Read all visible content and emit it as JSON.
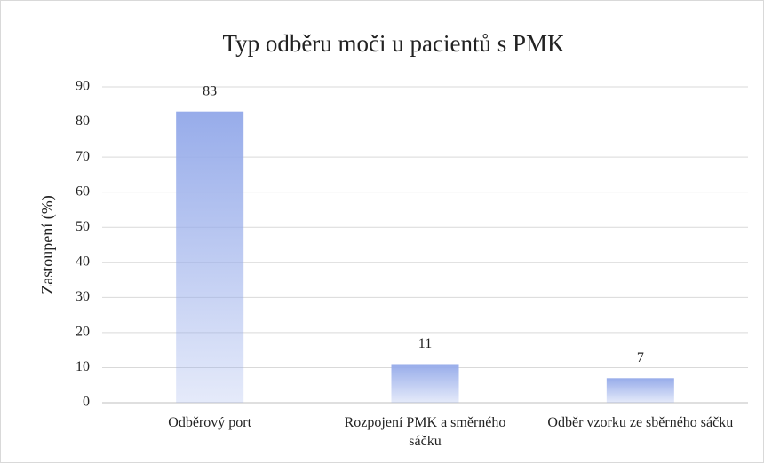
{
  "chart_data": {
    "type": "bar",
    "title": "Typ odběru moči u pacientů s PMK",
    "y_label": "Zastoupení (%)",
    "categories": [
      "Odběrový port",
      "Rozpojení PMK a směrného sáčku",
      "Odběr vzorku ze sběrného sáčku"
    ],
    "values": [
      83,
      11,
      7
    ],
    "color": "#97acea",
    "ylim": [
      0,
      90
    ],
    "yticks": [
      0,
      10,
      20,
      30,
      40,
      50,
      60,
      70,
      80,
      90
    ],
    "grid": true
  }
}
